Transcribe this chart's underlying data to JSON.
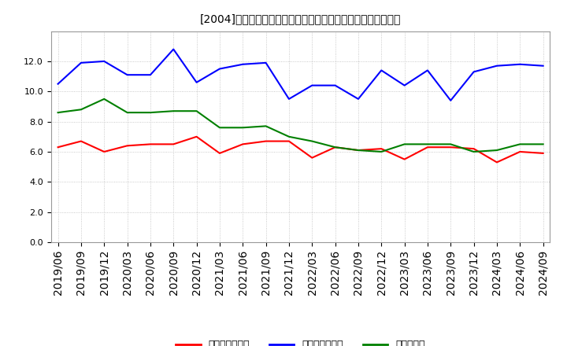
{
  "title": "[2004]　売上債権回転率、買入債務回転率、在庫回転率の推移",
  "dates": [
    "2019/06",
    "2019/09",
    "2019/12",
    "2020/03",
    "2020/06",
    "2020/09",
    "2020/12",
    "2021/03",
    "2021/06",
    "2021/09",
    "2021/12",
    "2022/03",
    "2022/06",
    "2022/09",
    "2022/12",
    "2023/03",
    "2023/06",
    "2023/09",
    "2023/12",
    "2024/03",
    "2024/06",
    "2024/09"
  ],
  "receivables_turnover": [
    6.3,
    6.7,
    6.0,
    6.4,
    6.5,
    6.5,
    7.0,
    5.9,
    6.5,
    6.7,
    6.7,
    5.6,
    6.3,
    6.1,
    6.2,
    5.5,
    6.3,
    6.3,
    6.2,
    5.3,
    6.0,
    5.9
  ],
  "payables_turnover": [
    10.5,
    11.9,
    12.0,
    11.1,
    11.1,
    12.8,
    10.6,
    11.5,
    11.8,
    11.9,
    9.5,
    10.4,
    10.4,
    9.5,
    11.4,
    10.4,
    11.4,
    9.4,
    11.3,
    11.7,
    11.8,
    11.7
  ],
  "inventory_turnover": [
    8.6,
    8.8,
    9.5,
    8.6,
    8.6,
    8.7,
    8.7,
    7.6,
    7.6,
    7.7,
    7.0,
    6.7,
    6.3,
    6.1,
    6.0,
    6.5,
    6.5,
    6.5,
    6.0,
    6.1,
    6.5,
    6.5
  ],
  "receivables_color": "#ff0000",
  "payables_color": "#0000ff",
  "inventory_color": "#008000",
  "legend_labels": [
    "売上債権回転率",
    "買入債務回転率",
    "在庫回転率"
  ],
  "ylim": [
    0.0,
    14.0
  ],
  "yticks": [
    0.0,
    2.0,
    4.0,
    6.0,
    8.0,
    10.0,
    12.0
  ],
  "background_color": "#ffffff",
  "grid_color": "#aaaaaa",
  "title_fontsize": 11
}
